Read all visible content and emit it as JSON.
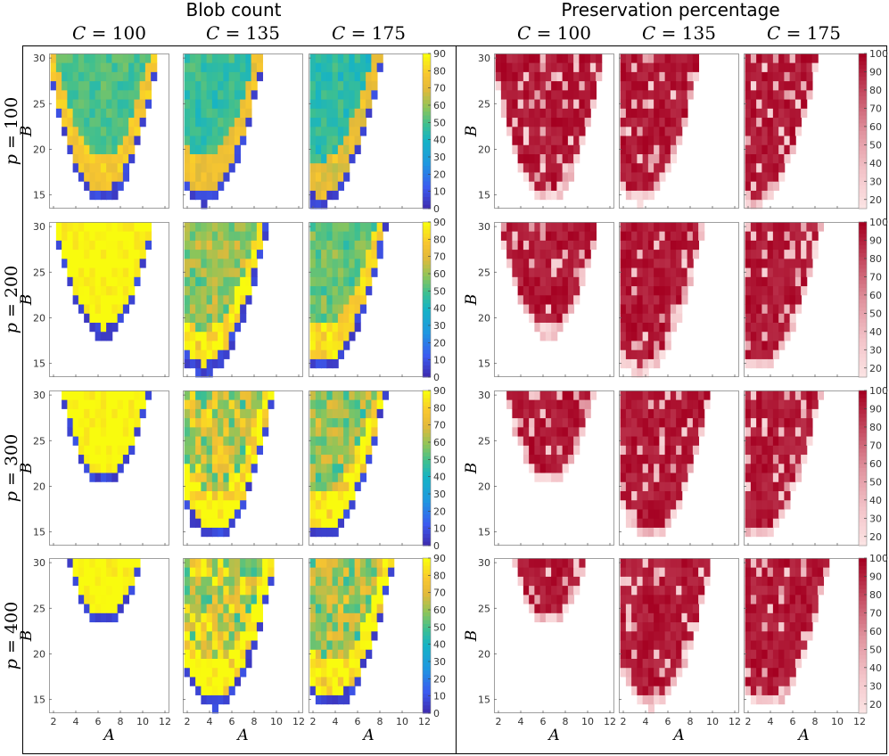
{
  "sections": {
    "blob": {
      "title": "Blob count"
    },
    "pres": {
      "title": "Preservation percentage"
    }
  },
  "columns": [
    "C = 100",
    "C = 135",
    "C = 175"
  ],
  "column_symbol": "C",
  "column_values": [
    "100",
    "135",
    "175"
  ],
  "row_symbol": "p",
  "row_values": [
    "100",
    "200",
    "300",
    "400"
  ],
  "axes": {
    "x_label": "A",
    "y_label": "B",
    "x_ticks": [
      "2",
      "4",
      "6",
      "8",
      "10",
      "12"
    ],
    "y_ticks": [
      "15",
      "20",
      "25",
      "30"
    ]
  },
  "colorbars": {
    "blob_ticks": [
      "90",
      "80",
      "70",
      "60",
      "50",
      "40",
      "30",
      "20",
      "10",
      "0"
    ],
    "pres_ticks": [
      "100",
      "90",
      "80",
      "70",
      "60",
      "50",
      "40",
      "30",
      "20"
    ]
  },
  "colors": {
    "blob_low": "#3e26a8",
    "blob_mid": "#22b5c9",
    "blob_high": "#f9fb0e",
    "pres_low": "#fbe3e3",
    "pres_high": "#a50021",
    "frame": "#000000"
  },
  "chart_data": [
    {
      "type": "heatmap",
      "title": "Blob count",
      "x": "A",
      "y": "B",
      "xlim": [
        1.6,
        12.4
      ],
      "ylim": [
        13.5,
        30.5
      ],
      "clim": [
        0,
        90
      ],
      "colormap": "parula",
      "panels": [
        {
          "C": 100,
          "p": 100,
          "region": {
            "vertex_a": 6.4,
            "vertex_b": 14.2,
            "k": 0.62
          },
          "inner_mean": 53,
          "inner_range": [
            47,
            67
          ]
        },
        {
          "C": 135,
          "p": 100,
          "region": {
            "vertex_a": 3.5,
            "vertex_b": 14.0,
            "k": 0.55
          },
          "inner_mean": 46,
          "inner_range": [
            35,
            62
          ]
        },
        {
          "C": 175,
          "p": 100,
          "region": {
            "vertex_a": 2.6,
            "vertex_b": 13.8,
            "k": 0.5
          },
          "inner_mean": 42,
          "inner_range": [
            25,
            75
          ]
        },
        {
          "C": 100,
          "p": 200,
          "region": {
            "vertex_a": 6.5,
            "vertex_b": 17.8,
            "k": 0.62
          },
          "inner_mean": 90,
          "inner_range": [
            90,
            90
          ]
        },
        {
          "C": 135,
          "p": 200,
          "region": {
            "vertex_a": 3.5,
            "vertex_b": 13.8,
            "k": 0.5
          },
          "inner_mean": 68,
          "inner_range": [
            55,
            82
          ]
        },
        {
          "C": 175,
          "p": 200,
          "region": {
            "vertex_a": 2.8,
            "vertex_b": 14.0,
            "k": 0.48
          },
          "inner_mean": 60,
          "inner_range": [
            45,
            80
          ]
        },
        {
          "C": 100,
          "p": 300,
          "region": {
            "vertex_a": 6.6,
            "vertex_b": 20.0,
            "k": 0.62
          },
          "inner_mean": 90,
          "inner_range": [
            90,
            90
          ]
        },
        {
          "C": 135,
          "p": 300,
          "region": {
            "vertex_a": 4.4,
            "vertex_b": 14.0,
            "k": 0.55
          },
          "inner_mean": 85,
          "inner_range": [
            75,
            90
          ]
        },
        {
          "C": 175,
          "p": 300,
          "region": {
            "vertex_a": 2.9,
            "vertex_b": 14.2,
            "k": 0.5
          },
          "inner_mean": 72,
          "inner_range": [
            60,
            85
          ]
        },
        {
          "C": 100,
          "p": 400,
          "region": {
            "vertex_a": 6.6,
            "vertex_b": 23.0,
            "k": 0.65
          },
          "inner_mean": 90,
          "inner_range": [
            90,
            90
          ]
        },
        {
          "C": 135,
          "p": 400,
          "region": {
            "vertex_a": 4.5,
            "vertex_b": 14.0,
            "k": 0.55
          },
          "inner_mean": 88,
          "inner_range": [
            80,
            90
          ]
        },
        {
          "C": 175,
          "p": 400,
          "region": {
            "vertex_a": 3.6,
            "vertex_b": 14.0,
            "k": 0.5
          },
          "inner_mean": 76,
          "inner_range": [
            65,
            90
          ]
        }
      ]
    },
    {
      "type": "heatmap",
      "title": "Preservation percentage",
      "x": "A",
      "y": "B",
      "xlim": [
        1.6,
        12.4
      ],
      "ylim": [
        13.5,
        30.5
      ],
      "clim": [
        15,
        100
      ],
      "colormap": "pink-to-dark-red",
      "panels": [
        {
          "C": 100,
          "p": 100,
          "region": {
            "vertex_a": 6.4,
            "vertex_b": 14.2,
            "k": 0.62
          }
        },
        {
          "C": 135,
          "p": 100,
          "region": {
            "vertex_a": 3.5,
            "vertex_b": 14.0,
            "k": 0.55
          }
        },
        {
          "C": 175,
          "p": 100,
          "region": {
            "vertex_a": 2.6,
            "vertex_b": 13.8,
            "k": 0.5
          }
        },
        {
          "C": 100,
          "p": 200,
          "region": {
            "vertex_a": 6.5,
            "vertex_b": 17.8,
            "k": 0.62
          }
        },
        {
          "C": 135,
          "p": 200,
          "region": {
            "vertex_a": 3.5,
            "vertex_b": 13.8,
            "k": 0.5
          }
        },
        {
          "C": 175,
          "p": 200,
          "region": {
            "vertex_a": 2.8,
            "vertex_b": 14.0,
            "k": 0.48
          }
        },
        {
          "C": 100,
          "p": 300,
          "region": {
            "vertex_a": 6.6,
            "vertex_b": 20.0,
            "k": 0.62
          }
        },
        {
          "C": 135,
          "p": 300,
          "region": {
            "vertex_a": 4.4,
            "vertex_b": 14.0,
            "k": 0.55
          }
        },
        {
          "C": 175,
          "p": 300,
          "region": {
            "vertex_a": 2.9,
            "vertex_b": 14.2,
            "k": 0.5
          }
        },
        {
          "C": 100,
          "p": 400,
          "region": {
            "vertex_a": 6.6,
            "vertex_b": 23.0,
            "k": 0.65
          }
        },
        {
          "C": 135,
          "p": 400,
          "region": {
            "vertex_a": 4.5,
            "vertex_b": 14.0,
            "k": 0.55
          }
        },
        {
          "C": 175,
          "p": 400,
          "region": {
            "vertex_a": 3.6,
            "vertex_b": 14.0,
            "k": 0.5
          }
        }
      ]
    }
  ]
}
